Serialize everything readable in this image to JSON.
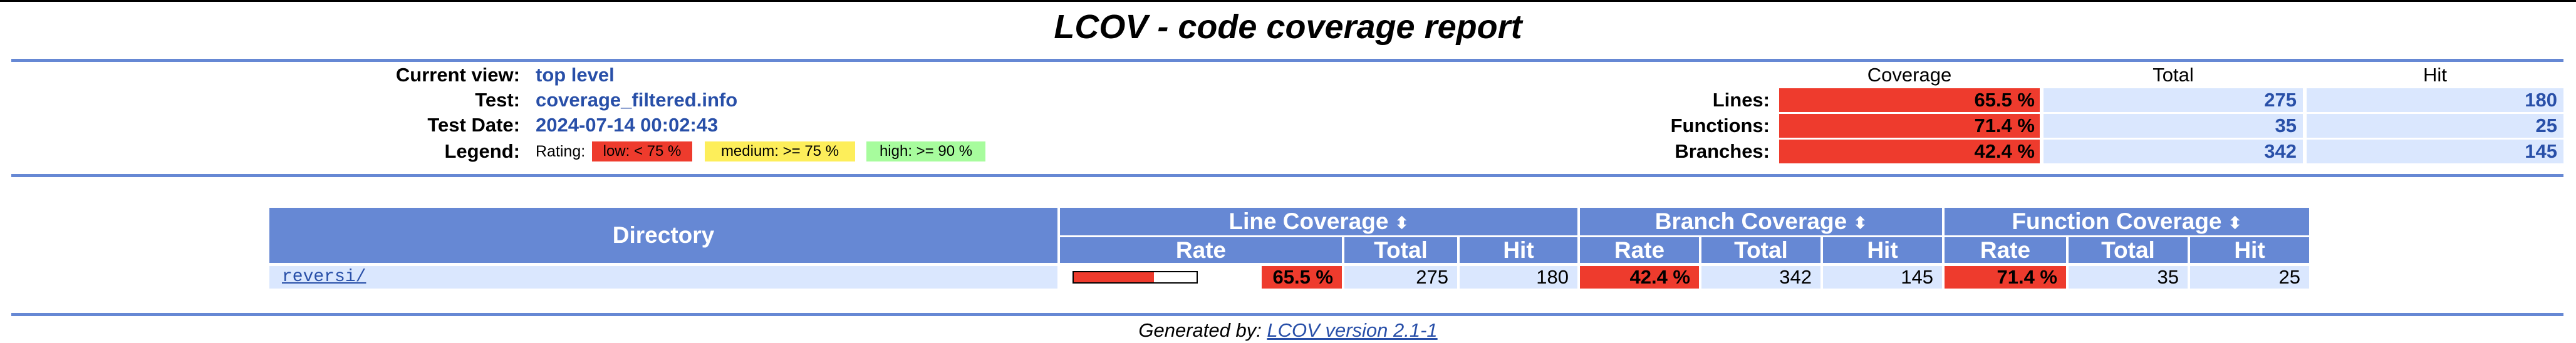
{
  "title": "LCOV - code coverage report",
  "info": {
    "current_view_label": "Current view:",
    "current_view": "top level",
    "test_label": "Test:",
    "test": "coverage_filtered.info",
    "test_date_label": "Test Date:",
    "test_date": "2024-07-14 00:02:43",
    "legend_label": "Legend:",
    "rating_label": "Rating:",
    "legend_low": "low: < 75 %",
    "legend_medium": "medium: >= 75 %",
    "legend_high": "high: >= 90 %"
  },
  "summary": {
    "col_coverage": "Coverage",
    "col_total": "Total",
    "col_hit": "Hit",
    "rows": [
      {
        "label": "Lines:",
        "coverage": "65.5 %",
        "total": "275",
        "hit": "180"
      },
      {
        "label": "Functions:",
        "coverage": "71.4 %",
        "total": "35",
        "hit": "25"
      },
      {
        "label": "Branches:",
        "coverage": "42.4 %",
        "total": "342",
        "hit": "145"
      }
    ]
  },
  "table": {
    "directory_header": "Directory",
    "line_cov_header": "Line Coverage",
    "branch_cov_header": "Branch Coverage",
    "func_cov_header": "Function Coverage",
    "sort_icon": "⬍",
    "sub_rate": "Rate",
    "sub_total": "Total",
    "sub_hit": "Hit",
    "rows": [
      {
        "directory": "reversi/",
        "line_bar_percent": 65.5,
        "line_rate": "65.5 %",
        "line_total": "275",
        "line_hit": "180",
        "branch_rate": "42.4 %",
        "branch_total": "342",
        "branch_hit": "145",
        "func_rate": "71.4 %",
        "func_total": "35",
        "func_hit": "25"
      }
    ]
  },
  "footer": {
    "generated_by": "Generated by: ",
    "link_text": "LCOV version 2.1-1"
  },
  "colors": {
    "header_blue": "#6688d4",
    "cell_light_blue": "#dae7fe",
    "low_red": "#ee3b2d",
    "medium_yellow": "#fdee5a",
    "high_green": "#a7fc9d",
    "link_blue": "#284fa8"
  }
}
